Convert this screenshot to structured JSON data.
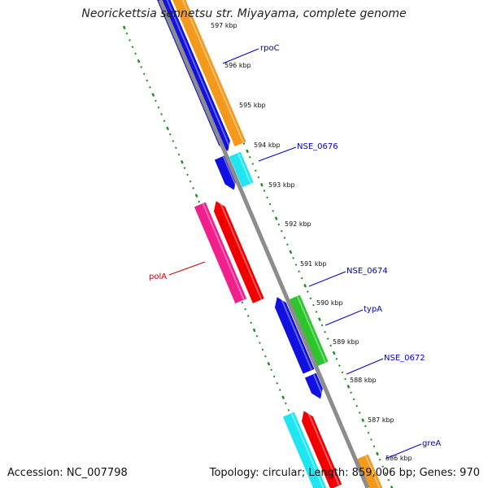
{
  "title": "Neorickettsia sennetsu str. Miyayama, complete genome",
  "footer": {
    "accession": "Accession: NC_007798",
    "topology": "Topology: circular; Length: 859,006 bp; Genes: 970"
  },
  "colors": {
    "backbone": "#8c8c8c",
    "ticks": "#1f8c1f",
    "label_forward": "#0000cc",
    "label_reverse": "#cc0000",
    "orange": "#f39a1c",
    "blue": "#1010e0",
    "cyan": "#1fe6f0",
    "magenta": "#f0208c",
    "red": "#f00000",
    "green": "#2cc52c"
  },
  "ticks": [
    {
      "label": "597 kbp"
    },
    {
      "label": "596 kbp"
    },
    {
      "label": "595 kbp"
    },
    {
      "label": "594 kbp"
    },
    {
      "label": "593 kbp"
    },
    {
      "label": "592 kbp"
    },
    {
      "label": "591 kbp"
    },
    {
      "label": "590 kbp"
    },
    {
      "label": "589 kbp"
    },
    {
      "label": "588 kbp"
    },
    {
      "label": "587 kbp"
    },
    {
      "label": "586 kbp"
    }
  ],
  "gene_labels": [
    {
      "name": "rpoC",
      "strand": "forward"
    },
    {
      "name": "NSE_0676",
      "strand": "forward"
    },
    {
      "name": "polA",
      "strand": "reverse"
    },
    {
      "name": "NSE_0674",
      "strand": "forward"
    },
    {
      "name": "typA",
      "strand": "forward"
    },
    {
      "name": "NSE_0672",
      "strand": "forward"
    },
    {
      "name": "greA",
      "strand": "forward"
    }
  ],
  "features": [
    {
      "name": "rpoC",
      "color": "orange"
    },
    {
      "name": "rpoC-partner",
      "color": "blue"
    },
    {
      "name": "NSE_0676",
      "color": "cyan"
    },
    {
      "name": "NSE_0676-partner",
      "color": "blue"
    },
    {
      "name": "polA-a",
      "color": "magenta"
    },
    {
      "name": "polA-b",
      "color": "red"
    },
    {
      "name": "NSE_0674",
      "color": "blue"
    },
    {
      "name": "typA",
      "color": "green"
    },
    {
      "name": "NSE_0672",
      "color": "blue"
    },
    {
      "name": "feature-cyan-low",
      "color": "cyan"
    },
    {
      "name": "feature-red-low",
      "color": "red"
    },
    {
      "name": "greA",
      "color": "orange"
    }
  ]
}
